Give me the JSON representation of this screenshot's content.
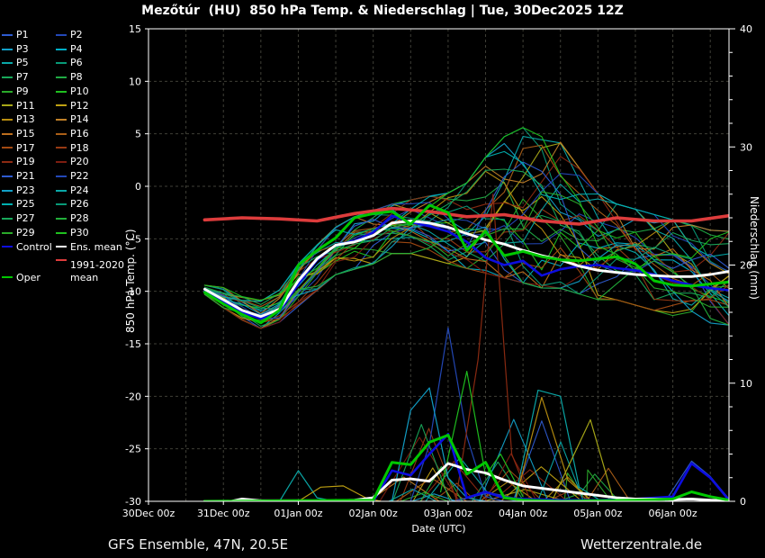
{
  "title": "Mezőtúr  (HU)  850 hPa Temp. & Niederschlag | Tue, 30Dec2025 12Z",
  "footer": {
    "left": "GFS Ensemble, 47N, 20.5E",
    "right": "Wetterzentrale.de"
  },
  "colors": {
    "background": "#000000",
    "frame": "#ffffff",
    "grid": "#3f3f37",
    "control": "#0d0de0",
    "ens_mean": "#ffffff",
    "climate": "#dd3c3c",
    "oper": "#00c800"
  },
  "legend": {
    "control_label": "Control",
    "ens_mean_label": "Ens. mean",
    "climate_label_line1": "1991-2020",
    "climate_label_line2": "mean",
    "oper_label": "Oper"
  },
  "chart_data": {
    "type": "line",
    "title": "Mezőtúr (HU) 850 hPa Temp. & Niederschlag | Tue, 30Dec2025 12Z",
    "x_axis": {
      "label": "Date (UTC)",
      "tick_labels": [
        "30Dec 00z",
        "31Dec 00z",
        "01Jan 00z",
        "02Jan 00z",
        "03Jan 00z",
        "04Jan 00z",
        "05Jan 00z",
        "06Jan 00z"
      ],
      "tick_days": [
        0,
        1,
        2,
        3,
        4,
        5,
        6,
        7
      ],
      "minor_step_days": 0.5,
      "range_days": [
        0,
        7.75
      ],
      "data_start_day": 0.75
    },
    "y_left": {
      "label": "850 hPa Temp. (°C)",
      "ticks": [
        15,
        10,
        5,
        0,
        -5,
        -10,
        -15,
        -20,
        -25,
        -30
      ],
      "range": [
        -30,
        15
      ],
      "gridlines": [
        10,
        5,
        0,
        -5,
        -10,
        -15,
        -20,
        -25
      ]
    },
    "y_right": {
      "label": "Niederschlag (mm)",
      "ticks": [
        40,
        30,
        20,
        10,
        0
      ],
      "minor_step": 2,
      "range": [
        0,
        40
      ]
    },
    "series": {
      "ens_mean_temp": [
        [
          0.75,
          -9.8
        ],
        [
          1,
          -10.8
        ],
        [
          1.25,
          -11.8
        ],
        [
          1.5,
          -12.4
        ],
        [
          1.75,
          -11.7
        ],
        [
          2,
          -9.0
        ],
        [
          2.25,
          -6.9
        ],
        [
          2.5,
          -5.6
        ],
        [
          2.75,
          -5.3
        ],
        [
          3,
          -4.7
        ],
        [
          3.25,
          -3.5
        ],
        [
          3.5,
          -3.3
        ],
        [
          3.75,
          -3.5
        ],
        [
          4,
          -3.9
        ],
        [
          4.25,
          -4.5
        ],
        [
          4.5,
          -5.1
        ],
        [
          4.75,
          -5.5
        ],
        [
          5,
          -6.1
        ],
        [
          5.25,
          -6.6
        ],
        [
          5.5,
          -7.0
        ],
        [
          5.75,
          -7.6
        ],
        [
          6,
          -8.0
        ],
        [
          6.25,
          -8.2
        ],
        [
          6.5,
          -8.4
        ],
        [
          6.75,
          -8.5
        ],
        [
          7,
          -8.6
        ],
        [
          7.25,
          -8.6
        ],
        [
          7.5,
          -8.4
        ],
        [
          7.75,
          -8.1
        ]
      ],
      "control_temp": [
        [
          0.75,
          -10.0
        ],
        [
          1,
          -11.0
        ],
        [
          1.25,
          -12.0
        ],
        [
          1.5,
          -12.6
        ],
        [
          1.75,
          -11.9
        ],
        [
          2,
          -9.3
        ],
        [
          2.25,
          -7.0
        ],
        [
          2.5,
          -5.6
        ],
        [
          2.75,
          -5.2
        ],
        [
          3,
          -4.4
        ],
        [
          3.25,
          -2.8
        ],
        [
          3.5,
          -3.4
        ],
        [
          3.75,
          -3.8
        ],
        [
          4,
          -4.3
        ],
        [
          4.25,
          -5.3
        ],
        [
          4.5,
          -6.8
        ],
        [
          4.75,
          -7.5
        ],
        [
          5,
          -7.1
        ],
        [
          5.25,
          -8.5
        ],
        [
          5.5,
          -7.9
        ],
        [
          5.75,
          -7.6
        ],
        [
          6,
          -7.5
        ],
        [
          6.25,
          -7.8
        ],
        [
          6.5,
          -8.0
        ],
        [
          6.75,
          -8.4
        ],
        [
          7,
          -9.0
        ],
        [
          7.25,
          -9.4
        ],
        [
          7.5,
          -9.7
        ],
        [
          7.75,
          -9.9
        ]
      ],
      "oper_temp": [
        [
          0.75,
          -10.1
        ],
        [
          1,
          -11.2
        ],
        [
          1.25,
          -12.2
        ],
        [
          1.5,
          -13.0
        ],
        [
          1.75,
          -11.8
        ],
        [
          2,
          -7.5
        ],
        [
          2.25,
          -6.1
        ],
        [
          2.5,
          -4.9
        ],
        [
          2.75,
          -3.0
        ],
        [
          3,
          -2.6
        ],
        [
          3.25,
          -2.4
        ],
        [
          3.5,
          -3.6
        ],
        [
          3.75,
          -1.8
        ],
        [
          4,
          -2.5
        ],
        [
          4.25,
          -6.1
        ],
        [
          4.5,
          -4.3
        ],
        [
          4.75,
          -6.6
        ],
        [
          5,
          -6.2
        ],
        [
          5.25,
          -6.7
        ],
        [
          5.5,
          -7.0
        ],
        [
          5.75,
          -7.1
        ],
        [
          6,
          -6.9
        ],
        [
          6.25,
          -6.7
        ],
        [
          6.5,
          -7.4
        ],
        [
          6.75,
          -9.0
        ],
        [
          7,
          -9.4
        ],
        [
          7.25,
          -9.5
        ],
        [
          7.5,
          -9.3
        ],
        [
          7.75,
          -9.1
        ]
      ],
      "climate_mean_temp": [
        [
          0.75,
          -3.2
        ],
        [
          1.25,
          -3.0
        ],
        [
          1.75,
          -3.1
        ],
        [
          2.25,
          -3.3
        ],
        [
          2.75,
          -2.6
        ],
        [
          3.25,
          -2.1
        ],
        [
          3.75,
          -2.4
        ],
        [
          4.25,
          -2.9
        ],
        [
          4.75,
          -2.7
        ],
        [
          5.25,
          -3.3
        ],
        [
          5.75,
          -3.6
        ],
        [
          6.25,
          -3.0
        ],
        [
          6.75,
          -3.3
        ],
        [
          7.25,
          -3.3
        ],
        [
          7.75,
          -2.8
        ]
      ],
      "ens_mean_precip": [
        [
          0.75,
          0
        ],
        [
          1.1,
          0
        ],
        [
          1.25,
          0.2
        ],
        [
          1.5,
          0.05
        ],
        [
          2.5,
          0.05
        ],
        [
          2.75,
          0.1
        ],
        [
          3,
          0.3
        ],
        [
          3.25,
          1.8
        ],
        [
          3.5,
          1.9
        ],
        [
          3.75,
          1.7
        ],
        [
          4,
          3.2
        ],
        [
          4.25,
          2.7
        ],
        [
          4.5,
          2.4
        ],
        [
          4.75,
          1.8
        ],
        [
          5,
          1.3
        ],
        [
          5.25,
          1.1
        ],
        [
          5.5,
          0.9
        ],
        [
          5.75,
          0.7
        ],
        [
          6,
          0.5
        ],
        [
          6.25,
          0.3
        ],
        [
          6.5,
          0.2
        ],
        [
          6.75,
          0.2
        ],
        [
          7,
          0.15
        ],
        [
          7.25,
          0.2
        ],
        [
          7.5,
          0.1
        ],
        [
          7.75,
          0.05
        ]
      ],
      "control_precip": [
        [
          0.75,
          0
        ],
        [
          3,
          0
        ],
        [
          3.25,
          2.6
        ],
        [
          3.5,
          2.2
        ],
        [
          3.75,
          4.0
        ],
        [
          4,
          5.7
        ],
        [
          4.25,
          0.3
        ],
        [
          4.5,
          0.8
        ],
        [
          4.75,
          0.3
        ],
        [
          5,
          0.2
        ],
        [
          5.5,
          0.1
        ],
        [
          6,
          0.1
        ],
        [
          6.5,
          0.2
        ],
        [
          7,
          0.4
        ],
        [
          7.25,
          3.2
        ],
        [
          7.5,
          2.0
        ],
        [
          7.75,
          0.1
        ]
      ],
      "oper_precip": [
        [
          0.75,
          0
        ],
        [
          3,
          0.1
        ],
        [
          3.25,
          3.3
        ],
        [
          3.5,
          3.1
        ],
        [
          3.75,
          5.0
        ],
        [
          4,
          5.6
        ],
        [
          4.25,
          2.3
        ],
        [
          4.5,
          3.3
        ],
        [
          4.75,
          0.3
        ],
        [
          5,
          0.1
        ],
        [
          5.5,
          0
        ],
        [
          6,
          0.05
        ],
        [
          6.5,
          0.1
        ],
        [
          7,
          0.2
        ],
        [
          7.25,
          0.8
        ],
        [
          7.5,
          0.4
        ],
        [
          7.75,
          0.1
        ]
      ]
    },
    "members": [
      {
        "label": "P1",
        "color": "#2e5bd0"
      },
      {
        "label": "P2",
        "color": "#2348b8"
      },
      {
        "label": "P3",
        "color": "#12a0c8"
      },
      {
        "label": "P4",
        "color": "#00b0c8"
      },
      {
        "label": "P5",
        "color": "#0aa8a8"
      },
      {
        "label": "P6",
        "color": "#089a78"
      },
      {
        "label": "P7",
        "color": "#18a85a"
      },
      {
        "label": "P8",
        "color": "#20aa44"
      },
      {
        "label": "P9",
        "color": "#2aaa2a"
      },
      {
        "label": "P10",
        "color": "#1fc01f"
      },
      {
        "label": "P11",
        "color": "#a8a818"
      },
      {
        "label": "P12",
        "color": "#bfa112"
      },
      {
        "label": "P13",
        "color": "#b88d10"
      },
      {
        "label": "P14",
        "color": "#c08028"
      },
      {
        "label": "P15",
        "color": "#bd6f1e"
      },
      {
        "label": "P16",
        "color": "#ab5f17"
      },
      {
        "label": "P17",
        "color": "#a34a12"
      },
      {
        "label": "P18",
        "color": "#973a14"
      },
      {
        "label": "P19",
        "color": "#8c2a12"
      },
      {
        "label": "P20",
        "color": "#7d1d10"
      },
      {
        "label": "P21",
        "color": "#2e5bd0"
      },
      {
        "label": "P22",
        "color": "#2348b8"
      },
      {
        "label": "P23",
        "color": "#12a0c8"
      },
      {
        "label": "P24",
        "color": "#0aa8a8"
      },
      {
        "label": "P25",
        "color": "#00b0b0"
      },
      {
        "label": "P26",
        "color": "#089a78"
      },
      {
        "label": "P27",
        "color": "#18a85a"
      },
      {
        "label": "P28",
        "color": "#22b03a"
      },
      {
        "label": "P29",
        "color": "#2aaa2a"
      },
      {
        "label": "P30",
        "color": "#1fc01f"
      }
    ],
    "member_temp_envelope": {
      "days": [
        0.75,
        1,
        1.25,
        1.5,
        1.75,
        2,
        2.25,
        2.5,
        2.75,
        3,
        3.25,
        3.5,
        3.75,
        4,
        4.25,
        4.5,
        4.75,
        5,
        5.25,
        5.5,
        5.75,
        6,
        6.25,
        6.5,
        6.75,
        7,
        7.25,
        7.5,
        7.75
      ],
      "min": [
        -10.3,
        -11.6,
        -12.8,
        -13.6,
        -13.0,
        -11.5,
        -10.0,
        -8.5,
        -8.0,
        -7.5,
        -6.5,
        -6.5,
        -7.0,
        -7.5,
        -8.0,
        -8.5,
        -9.0,
        -9.5,
        -10.0,
        -10.0,
        -10.5,
        -11.0,
        -11.0,
        -11.5,
        -12.0,
        -12.5,
        -13.0,
        -13.2,
        -13.4
      ],
      "max": [
        -9.4,
        -9.6,
        -10.4,
        -10.8,
        -9.8,
        -7.3,
        -5.5,
        -3.8,
        -2.8,
        -2.2,
        -1.6,
        -1.2,
        -0.8,
        -0.5,
        0.5,
        3.0,
        5.0,
        5.9,
        5.9,
        4.5,
        2.0,
        -0.5,
        -1.5,
        -2.0,
        -2.5,
        -3.0,
        -3.5,
        -4.0,
        -4.1
      ]
    },
    "member_precip_spikes": [
      {
        "color": "#2348b8",
        "points": [
          [
            3.5,
            0
          ],
          [
            3.75,
            4.8
          ],
          [
            4,
            14.7
          ],
          [
            4.25,
            5.5
          ],
          [
            4.5,
            0.4
          ],
          [
            4.75,
            0
          ]
        ]
      },
      {
        "color": "#8c2a12",
        "points": [
          [
            4.1,
            0
          ],
          [
            4.4,
            12
          ],
          [
            4.6,
            26
          ],
          [
            4.85,
            4
          ],
          [
            5.1,
            0
          ]
        ]
      },
      {
        "color": "#0aa8a8",
        "points": [
          [
            1.75,
            0
          ],
          [
            2,
            2.6
          ],
          [
            2.25,
            0.3
          ],
          [
            2.5,
            0
          ]
        ]
      },
      {
        "color": "#bfa112",
        "points": [
          [
            2,
            0
          ],
          [
            2.3,
            1.2
          ],
          [
            2.6,
            1.3
          ],
          [
            2.9,
            0.3
          ],
          [
            3.1,
            0
          ]
        ]
      },
      {
        "color": "#12a0c8",
        "points": [
          [
            3.25,
            0
          ],
          [
            3.5,
            7.7
          ],
          [
            3.75,
            9.6
          ],
          [
            4,
            2
          ],
          [
            4.25,
            0.3
          ],
          [
            4.5,
            0
          ]
        ]
      },
      {
        "color": "#0aa8a8",
        "points": [
          [
            4.9,
            0.4
          ],
          [
            5.2,
            9.4
          ],
          [
            5.5,
            8.9
          ],
          [
            5.75,
            1.2
          ],
          [
            6,
            0.2
          ]
        ]
      },
      {
        "color": "#b88d10",
        "points": [
          [
            4.9,
            0.1
          ],
          [
            5.25,
            8.8
          ],
          [
            5.6,
            1.8
          ],
          [
            5.9,
            0.1
          ]
        ]
      },
      {
        "color": "#a8a818",
        "points": [
          [
            5.4,
            0.2
          ],
          [
            5.9,
            6.9
          ],
          [
            6.2,
            0.3
          ],
          [
            6.4,
            0
          ]
        ]
      },
      {
        "color": "#1fc01f",
        "points": [
          [
            3.9,
            0.8
          ],
          [
            4.25,
            11
          ],
          [
            4.5,
            2.2
          ],
          [
            4.7,
            4
          ],
          [
            5,
            0.4
          ]
        ]
      },
      {
        "color": "#2e5bd0",
        "points": [
          [
            6.9,
            0
          ],
          [
            7.25,
            3.4
          ],
          [
            7.5,
            2.1
          ],
          [
            7.75,
            0.2
          ]
        ]
      }
    ]
  }
}
